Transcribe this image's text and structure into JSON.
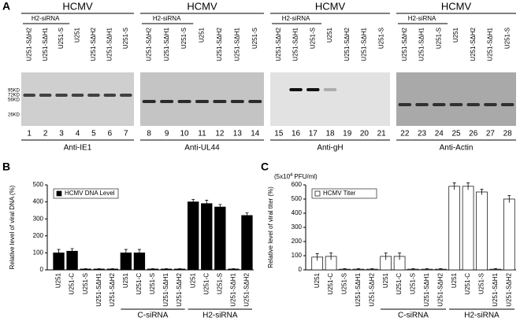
{
  "panel_a": {
    "label": "A",
    "markers": [
      "95KD",
      "72KD",
      "56KD",
      "26KD"
    ],
    "blots": [
      {
        "header": "HCMV",
        "group_label": "H2-siRNA",
        "lane_labels": [
          "U251-SΔH2",
          "U251-SΔH1",
          "U251-S",
          "U251",
          "U251-SΔH2",
          "U251-SΔH1",
          "U251-S"
        ],
        "lane_numbers": [
          1,
          2,
          3,
          4,
          5,
          6,
          7
        ],
        "antibody": "Anti-IE1"
      },
      {
        "header": "HCMV",
        "group_label": "H2-siRNA",
        "lane_labels": [
          "U251-SΔH2",
          "U251-SΔH1",
          "U251-S",
          "U251",
          "U251-SΔH2",
          "U251-SΔH1",
          "U251-S"
        ],
        "lane_numbers": [
          8,
          9,
          10,
          11,
          12,
          13,
          14
        ],
        "antibody": "Anti-UL44"
      },
      {
        "header": "HCMV",
        "group_label": "H2-siRNA",
        "lane_labels": [
          "U251-SΔH2",
          "U251-SΔH1",
          "U251-S",
          "U251",
          "U251-SΔH2",
          "U251-SΔH1",
          "U251-S"
        ],
        "lane_numbers": [
          15,
          16,
          17,
          18,
          19,
          20,
          21
        ],
        "antibody": "Anti-gH"
      },
      {
        "header": "HCMV",
        "group_label": "H2-siRNA",
        "lane_labels": [
          "U251-SΔH2",
          "U251-SΔH1",
          "U251-S",
          "U251",
          "U251-SΔH2",
          "U251-SΔH1",
          "U251-S"
        ],
        "lane_numbers": [
          22,
          23,
          24,
          25,
          26,
          27,
          28
        ],
        "antibody": "Anti-Actin"
      }
    ]
  },
  "chart_data": [
    {
      "type": "bar",
      "panel_label": "B",
      "ylabel": "Relative level of viral DNA (%)",
      "categories": [
        "U251",
        "U251-C",
        "U251-S",
        "U251-SΔH1",
        "U251-SΔH2",
        "U251",
        "U251-C",
        "U251-S",
        "U251-SΔH1",
        "U251-SΔH2",
        "U251",
        "U251-C",
        "U251-S",
        "U251-SΔH1",
        "U251-SΔH2"
      ],
      "group_labels": [
        "C-siRNA",
        "H2-siRNA"
      ],
      "series": [
        {
          "name": "HCMV DNA Level",
          "color": "#000000",
          "values": [
            100,
            110,
            5,
            5,
            5,
            100,
            100,
            5,
            5,
            5,
            400,
            390,
            370,
            5,
            320
          ],
          "errors": [
            20,
            15,
            2,
            2,
            2,
            20,
            20,
            2,
            2,
            2,
            15,
            20,
            15,
            2,
            15
          ]
        }
      ],
      "ylim": [
        0,
        500
      ],
      "yticks": [
        0,
        100,
        200,
        300,
        400,
        500
      ]
    },
    {
      "type": "bar",
      "panel_label": "C",
      "ylabel": "Relative level of viral titer (%)",
      "unit_note": {
        "prefix": "(5x10",
        "sup": "4",
        "suffix": "PFU/ml)"
      },
      "categories": [
        "U251",
        "U251-C",
        "U251-S",
        "U251-SΔH1",
        "U251-SΔH2",
        "U251",
        "U251-C",
        "U251-S",
        "U251-SΔH1",
        "U251-SΔH2",
        "U251",
        "U251-C",
        "U251-S",
        "U251-SΔH1",
        "U251-SΔH2"
      ],
      "group_labels": [
        "C-siRNA",
        "H2-siRNA"
      ],
      "series": [
        {
          "name": "HCMV Titer",
          "color": "#ffffff",
          "values": [
            90,
            95,
            5,
            5,
            5,
            95,
            95,
            5,
            5,
            5,
            590,
            590,
            550,
            5,
            500
          ],
          "errors": [
            25,
            25,
            3,
            3,
            3,
            25,
            25,
            3,
            3,
            3,
            25,
            25,
            20,
            3,
            25
          ]
        }
      ],
      "ylim": [
        0,
        600
      ],
      "yticks": [
        0,
        100,
        200,
        300,
        400,
        500,
        600
      ]
    }
  ]
}
